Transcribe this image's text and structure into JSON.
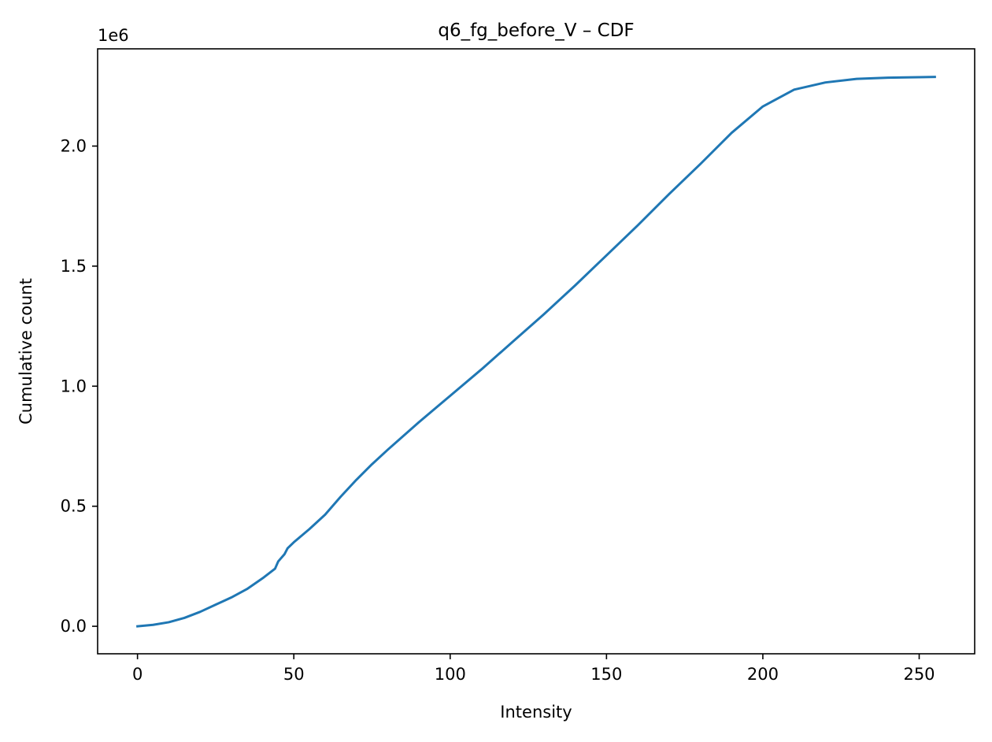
{
  "chart_data": {
    "type": "line",
    "title": "q6_fg_before_V – CDF",
    "xlabel": "Intensity",
    "ylabel": "Cumulative count",
    "y_offset_label": "1e6",
    "y_scale_factor": 1000000,
    "xlim": [
      -12.75,
      267.75
    ],
    "ylim": [
      -114500,
      2405000
    ],
    "x_ticks": [
      0,
      50,
      100,
      150,
      200,
      250
    ],
    "x_tick_labels": [
      "0",
      "50",
      "100",
      "150",
      "200",
      "250"
    ],
    "y_ticks": [
      0,
      500000,
      1000000,
      1500000,
      2000000
    ],
    "y_tick_labels": [
      "0.0",
      "0.5",
      "1.0",
      "1.5",
      "2.0"
    ],
    "grid": false,
    "legend": "none",
    "series": [
      {
        "color": "#1f77b4",
        "x": [
          0,
          5,
          10,
          15,
          20,
          25,
          30,
          35,
          40,
          44,
          45,
          47,
          48,
          50,
          55,
          60,
          65,
          70,
          75,
          80,
          90,
          100,
          110,
          120,
          130,
          140,
          150,
          160,
          170,
          180,
          190,
          200,
          210,
          220,
          230,
          240,
          250,
          255
        ],
        "y": [
          0,
          6000,
          17000,
          35000,
          60000,
          90000,
          120000,
          155000,
          200000,
          240000,
          270000,
          300000,
          325000,
          350000,
          405000,
          465000,
          540000,
          610000,
          675000,
          735000,
          850000,
          960000,
          1070000,
          1185000,
          1300000,
          1420000,
          1545000,
          1670000,
          1800000,
          1925000,
          2055000,
          2165000,
          2235000,
          2265000,
          2280000,
          2285000,
          2287000,
          2288000
        ]
      }
    ]
  }
}
